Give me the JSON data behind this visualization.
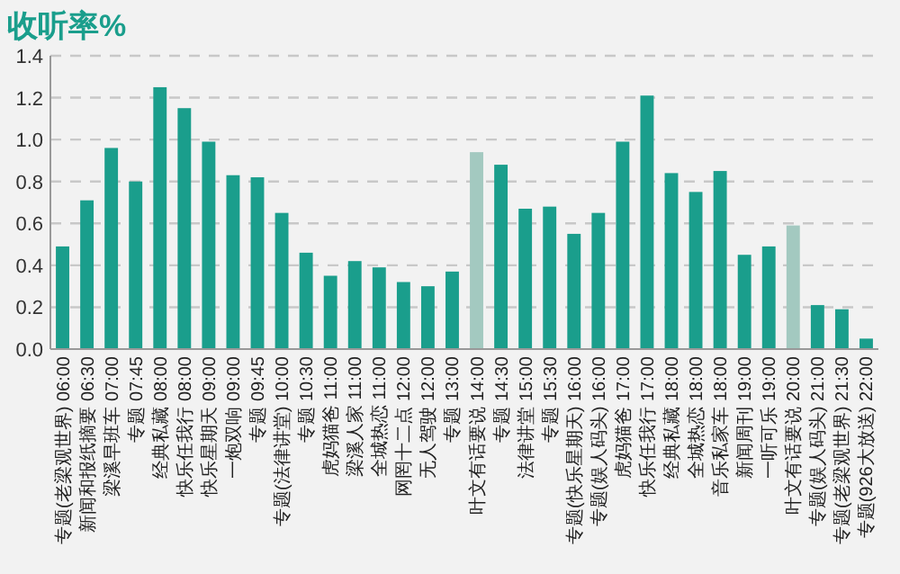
{
  "chart_data": {
    "type": "bar",
    "title": "收听率%",
    "categories": [
      "专题(老梁观世界) 06:00",
      "新闻和报纸摘要 06:30",
      "梁溪早班车 07:00",
      "专题 07:45",
      "经典私藏 08:00",
      "快乐任我行 08:00",
      "快乐星期天 09:00",
      "一炮双响 09:00",
      "专题 09:45",
      "专题(法律讲堂) 10:00",
      "专题 10:30",
      "虎妈猫爸 11:00",
      "梁溪人家 11:00",
      "全城热恋 11:00",
      "网罔十二点 12:00",
      "无人驾驶 12:00",
      "专题 13:00",
      "叶文有话要说 14:00",
      "专题 14:30",
      "法律讲堂 15:00",
      "专题 15:30",
      "专题(快乐星期天) 16:00",
      "专题(娱人码头) 16:00",
      "虎妈猫爸 17:00",
      "快乐任我行 17:00",
      "经典私藏 18:00",
      "全城热恋 18:00",
      "音乐私家车 18:00",
      "新闻周刊 19:00",
      "一听可乐 19:00",
      "叶文有话要说 20:00",
      "专题(娱人码头) 21:00",
      "专题(老梁观世界) 21:30",
      "专题(926大放送) 22:00"
    ],
    "values": [
      0.49,
      0.71,
      0.96,
      0.8,
      1.25,
      1.15,
      0.99,
      0.83,
      0.82,
      0.65,
      0.46,
      0.35,
      0.42,
      0.39,
      0.32,
      0.3,
      0.37,
      0.94,
      0.88,
      0.67,
      0.68,
      0.55,
      0.65,
      0.99,
      1.21,
      0.84,
      0.75,
      0.85,
      0.45,
      0.49,
      0.59,
      0.21,
      0.19,
      0.05
    ],
    "colors": [
      "#1a9e8c",
      "#1a9e8c",
      "#1a9e8c",
      "#1a9e8c",
      "#1a9e8c",
      "#1a9e8c",
      "#1a9e8c",
      "#1a9e8c",
      "#1a9e8c",
      "#1a9e8c",
      "#1a9e8c",
      "#1a9e8c",
      "#1a9e8c",
      "#1a9e8c",
      "#1a9e8c",
      "#1a9e8c",
      "#1a9e8c",
      "#a3c9c0",
      "#1a9e8c",
      "#1a9e8c",
      "#1a9e8c",
      "#1a9e8c",
      "#1a9e8c",
      "#1a9e8c",
      "#1a9e8c",
      "#1a9e8c",
      "#1a9e8c",
      "#1a9e8c",
      "#1a9e8c",
      "#1a9e8c",
      "#a3c9c0",
      "#1a9e8c",
      "#1a9e8c",
      "#1a9e8c"
    ],
    "ylim": [
      0,
      1.4
    ],
    "yticks": [
      {
        "value": 0,
        "label": "0.0"
      },
      0.2,
      0.4,
      0.6,
      0.8,
      {
        "value": 1,
        "label": "1.0"
      },
      1.2,
      1.4
    ],
    "grid": "y"
  }
}
